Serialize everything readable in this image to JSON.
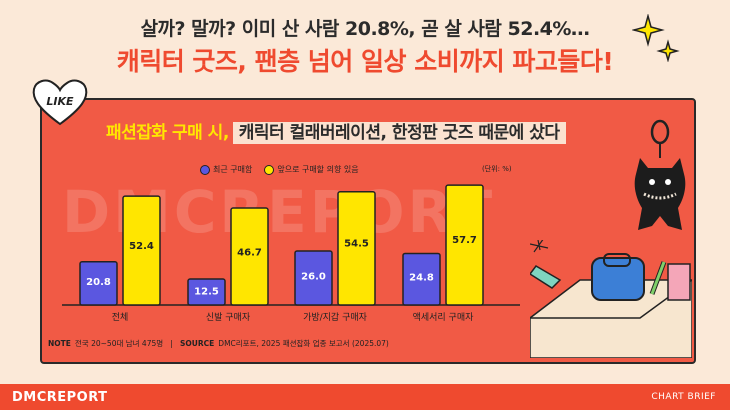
{
  "header": {
    "line1": "살까? 말까? 이미 산 사람 20.8%, 곧 살 사람 52.4%…",
    "line2": "캐릭터 굿즈, 팬층 넘어 일상 소비까지 파고들다!"
  },
  "badge": {
    "text": "LIKE"
  },
  "subtitle": {
    "part1": "패션잡화 구매 시,",
    "part2": "캐릭터 컬래버레이션, 한정판 굿즈 때문에 샀다"
  },
  "watermark": "DMCREPORT",
  "note": {
    "label": "NOTE",
    "text": "전국 20~50대 남녀 475명",
    "source_label": "SOURCE",
    "source_text": "DMC리포트, 2025 패션잡화 업종 보고서 (2025.07)"
  },
  "footer": {
    "logo": "DMCREPORT",
    "tag": "CHART BRIEF"
  },
  "colors": {
    "recent": "#5b57e0",
    "intent": "#ffe600",
    "accent": "#ef4a2f",
    "panel": "#f15a45"
  },
  "chart_data": {
    "type": "bar",
    "unit_label": "(단위: %)",
    "categories": [
      "전체",
      "신발 구매자",
      "가방/지갑 구매자",
      "액세서리 구매자"
    ],
    "series": [
      {
        "name": "최근 구매함",
        "values": [
          20.8,
          12.5,
          26.0,
          24.8
        ],
        "labels": [
          "20.8",
          "12.5",
          "26.0",
          "24.8"
        ]
      },
      {
        "name": "앞으로 구매할 의향 있음",
        "values": [
          52.4,
          46.7,
          54.5,
          57.7
        ],
        "labels": [
          "52.4",
          "46.7",
          "54.5",
          "57.7"
        ]
      }
    ],
    "ylim": [
      0,
      65
    ],
    "grid": false,
    "legend": "top-center"
  }
}
